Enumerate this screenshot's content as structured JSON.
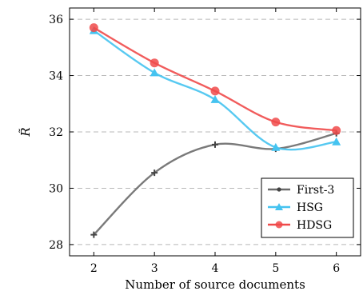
{
  "chart_data": {
    "type": "line",
    "title": "",
    "xlabel": "Number of source documents",
    "ylabel": "R̃",
    "x": [
      2,
      3,
      4,
      5,
      6
    ],
    "xlim": [
      1.6,
      6.4
    ],
    "ylim": [
      27.6,
      36.4
    ],
    "xticks": [
      "2",
      "3",
      "4",
      "5",
      "6"
    ],
    "yticks": [
      "28",
      "30",
      "32",
      "34",
      "36"
    ],
    "grid": "horizontal dashed",
    "legend_position": "bottom-right",
    "series": [
      {
        "name": "First-3",
        "values": [
          28.35,
          30.55,
          31.55,
          31.4,
          31.95
        ],
        "color": "#6b6b6b",
        "marker": "plus"
      },
      {
        "name": "HSG",
        "values": [
          35.6,
          34.1,
          33.15,
          31.45,
          31.65
        ],
        "color": "#45c3f0",
        "marker": "triangle"
      },
      {
        "name": "HDSG",
        "values": [
          35.7,
          34.45,
          33.45,
          32.35,
          32.05
        ],
        "color": "#f04a4a",
        "marker": "circle"
      }
    ]
  }
}
